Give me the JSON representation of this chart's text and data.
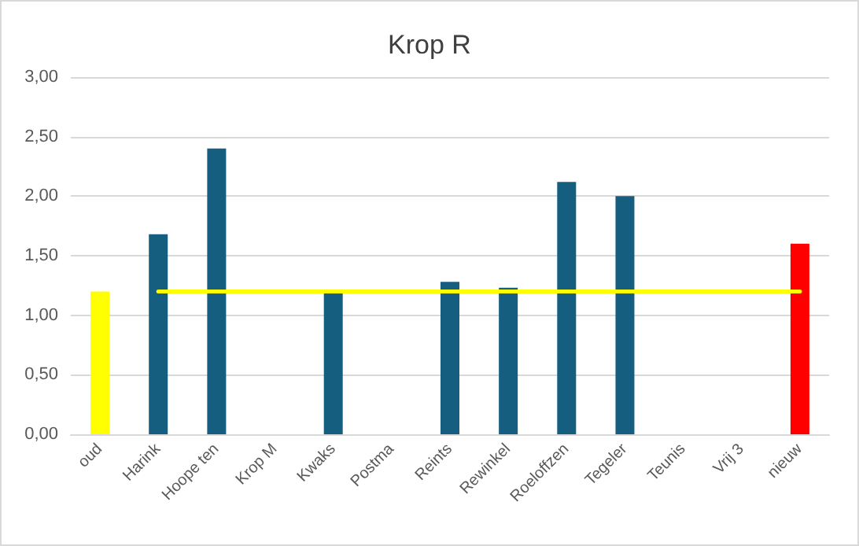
{
  "chart_data": {
    "type": "bar",
    "title": "Krop R",
    "categories": [
      "oud",
      "Harink",
      "Hoope ten",
      "Krop M",
      "Kwaks",
      "Postma",
      "Reints",
      "Rewinkel",
      "Roeloffzen",
      "Tegeler",
      "Teunis",
      "Vrij 3",
      "nieuw"
    ],
    "series": [
      {
        "values": [
          1.2,
          1.68,
          2.4,
          null,
          1.19,
          null,
          1.28,
          1.23,
          2.12,
          2.0,
          null,
          null,
          1.6
        ],
        "colors": [
          "#ffff00",
          "#165e80",
          "#165e80",
          "#165e80",
          "#165e80",
          "#165e80",
          "#165e80",
          "#165e80",
          "#165e80",
          "#165e80",
          "#165e80",
          "#165e80",
          "#ff0000"
        ]
      },
      {
        "type": "line",
        "color": "#ffff00",
        "marker": "none",
        "values": [
          null,
          1.2,
          1.2,
          1.2,
          1.2,
          1.2,
          1.2,
          1.2,
          1.2,
          1.2,
          1.2,
          1.2,
          1.2
        ]
      }
    ],
    "ylim": [
      0,
      3
    ],
    "yticks": [
      {
        "value": 0,
        "label": "0,00"
      },
      {
        "value": 0.5,
        "label": "0,50"
      },
      {
        "value": 1,
        "label": "1,00"
      },
      {
        "value": 1.5,
        "label": "1,50"
      },
      {
        "value": 2,
        "label": "2,00"
      },
      {
        "value": 2.5,
        "label": "2,50"
      },
      {
        "value": 3,
        "label": "3,00"
      }
    ],
    "grid": "y"
  }
}
